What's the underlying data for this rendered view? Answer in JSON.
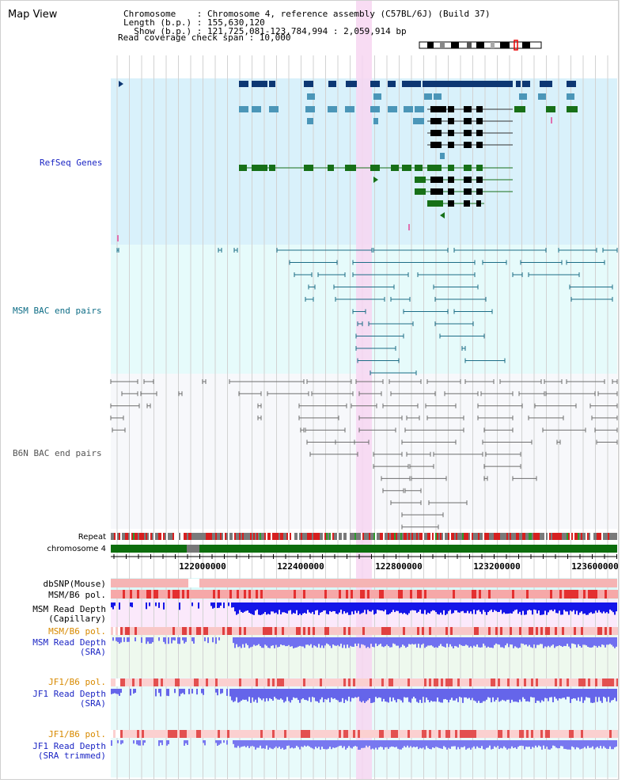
{
  "header": {
    "view_title": "Map View",
    "info_lines": [
      "Chromosome    : Chromosome 4, reference assembly (C57BL/6J) (Build 37)",
      "Length (b.p.) : 155,630,120",
      "  Show (b.p.) : 121,725,081-123,784,994 : 2,059,914 bp",
      "Read coverage check span : 10,000"
    ]
  },
  "tracks": {
    "refseq_label": "RefSeq Genes",
    "msm_bac_label": "MSM BAC end pairs",
    "b6n_bac_label": "B6N BAC end pairs",
    "repeat_label": "Repeat",
    "chromosome_label": "chromosome 4",
    "dbsnp_label": "dbSNP(Mouse)",
    "msm_b6_pol_label": "MSM/B6 pol.",
    "msm_depth_cap_label": "MSM Read Depth",
    "msm_depth_cap_sub": "(Capillary)",
    "msm_b6_pol2_label": "MSM/B6 pol.",
    "msm_depth_sra_label": "MSM Read Depth",
    "msm_depth_sra_sub": "(SRA)",
    "jf1_b6_pol_label": "JF1/B6 pol.",
    "jf1_depth_sra_label": "JF1 Read Depth",
    "jf1_depth_sra_sub": "(SRA)",
    "jf1_b6_pol2_label": "JF1/B6 pol.",
    "jf1_depth_trim_label": "JF1 Read Depth",
    "jf1_depth_trim_sub": "(SRA trimmed)"
  },
  "axis": {
    "ticks": [
      "122000000",
      "122400000",
      "122800000",
      "123200000",
      "123600000"
    ]
  },
  "colors": {
    "refseq_bg": "#d9f1fb",
    "bac_bg": "#e6fbfb",
    "b6n_bg": "#f7f8fb",
    "highlight": "#f7d6f1",
    "gene_navy": "#0d3773",
    "gene_teal": "#4b96b8",
    "gene_green": "#177017",
    "bac_teal": "#1c6d86",
    "b6n_gray": "#6e6e6e",
    "label_blue": "#1c26c4",
    "label_orange": "#d88a00",
    "label_teal": "#0e6d86",
    "chrom_green": "#0d6d0d"
  }
}
